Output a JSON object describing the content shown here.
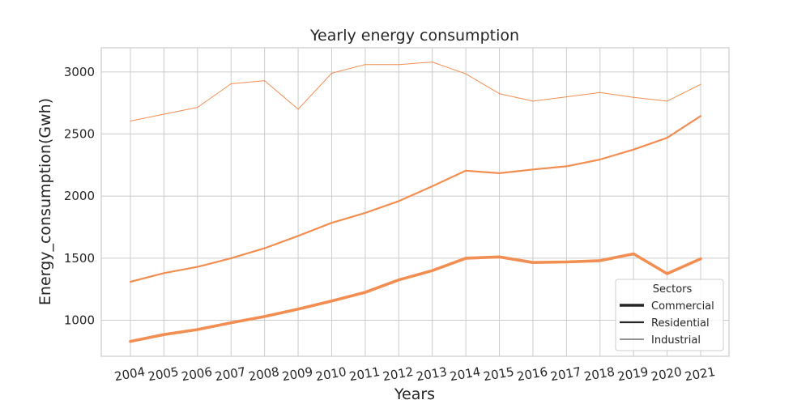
{
  "chart_data": {
    "type": "line",
    "title": "Yearly energy consumption",
    "xlabel": "Years",
    "ylabel": "Energy_consumption(Gwh)",
    "x": [
      "2004",
      "2005",
      "2006",
      "2007",
      "2008",
      "2009",
      "2010",
      "2011",
      "2012",
      "2013",
      "2014",
      "2015",
      "2016",
      "2017",
      "2018",
      "2019",
      "2020",
      "2021"
    ],
    "yticks": [
      1000,
      1500,
      2000,
      2500,
      3000
    ],
    "ylim": [
      710,
      3195
    ],
    "grid": true,
    "line_color": "#f28e52",
    "legend": {
      "title": "Sectors",
      "placement": "bottom-right"
    },
    "series": [
      {
        "name": "Commercial",
        "weight": "thick",
        "values": [
          830,
          885,
          925,
          980,
          1030,
          1090,
          1155,
          1225,
          1325,
          1400,
          1500,
          1510,
          1465,
          1470,
          1480,
          1535,
          1375,
          1495
        ]
      },
      {
        "name": "Residential",
        "weight": "medium",
        "values": [
          1310,
          1380,
          1430,
          1500,
          1580,
          1680,
          1785,
          1865,
          1960,
          2080,
          2205,
          2185,
          2215,
          2240,
          2295,
          2375,
          2470,
          2645
        ]
      },
      {
        "name": "Industrial",
        "weight": "thin",
        "values": [
          2605,
          2660,
          2715,
          2905,
          2930,
          2700,
          2990,
          3060,
          3060,
          3080,
          2985,
          2825,
          2765,
          2800,
          2835,
          2795,
          2765,
          2900
        ]
      }
    ]
  }
}
